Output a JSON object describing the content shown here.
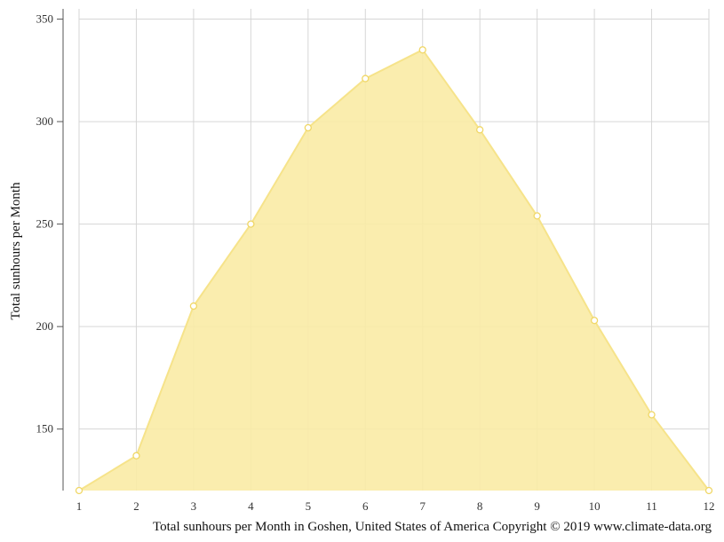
{
  "chart_data": {
    "type": "area",
    "x": [
      1,
      2,
      3,
      4,
      5,
      6,
      7,
      8,
      9,
      10,
      11,
      12
    ],
    "series": [
      {
        "values": [
          120,
          137,
          210,
          250,
          297,
          321,
          335,
          296,
          254,
          203,
          157,
          120
        ]
      }
    ],
    "xlabel": "",
    "ylabel": "Total sunhours per Month",
    "caption": "Total sunhours per Month in Goshen, United States of America Copyright © 2019 www.climate-data.org",
    "xlim": [
      1,
      12
    ],
    "ylim": [
      120,
      355
    ],
    "yticks": [
      150,
      200,
      250,
      300,
      350
    ],
    "grid": true,
    "fill_color": "#f9eba5",
    "line_color": "#f6e38a",
    "point_stroke": "#f0d766",
    "grid_color": "#d6d6d6"
  }
}
